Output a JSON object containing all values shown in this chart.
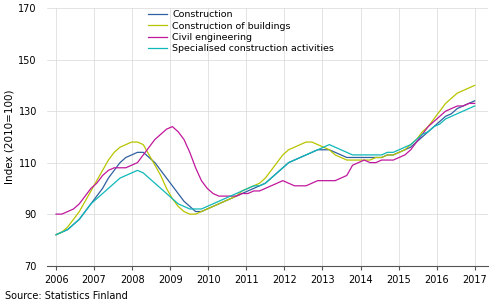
{
  "title": "",
  "ylabel": "Index (2010=100)",
  "source": "Source: Statistics Finland",
  "ylim": [
    70,
    170
  ],
  "yticks": [
    70,
    90,
    110,
    130,
    150,
    170
  ],
  "xlim": [
    2005.75,
    2017.35
  ],
  "xticks": [
    2006,
    2007,
    2008,
    2009,
    2010,
    2011,
    2012,
    2013,
    2014,
    2015,
    2016,
    2017
  ],
  "colors": {
    "construction": "#3060a0",
    "buildings": "#b8c400",
    "civil": "#c0189c",
    "specialised": "#10b8b8"
  },
  "construction": [
    82,
    83,
    84,
    86,
    88,
    91,
    94,
    97,
    100,
    104,
    107,
    110,
    112,
    113,
    114,
    114,
    112,
    110,
    107,
    104,
    101,
    98,
    95,
    93,
    91,
    91,
    92,
    93,
    94,
    95,
    96,
    97,
    98,
    99,
    100,
    101,
    102,
    104,
    106,
    108,
    110,
    111,
    112,
    113,
    114,
    115,
    115,
    115,
    114,
    113,
    112,
    112,
    112,
    112,
    112,
    112,
    112,
    113,
    113,
    114,
    115,
    116,
    118,
    120,
    122,
    124,
    126,
    128,
    129,
    131,
    132,
    133,
    134
  ],
  "buildings": [
    82,
    83,
    85,
    88,
    91,
    95,
    99,
    103,
    107,
    111,
    114,
    116,
    117,
    118,
    118,
    117,
    113,
    109,
    105,
    100,
    96,
    93,
    91,
    90,
    90,
    91,
    92,
    93,
    94,
    95,
    96,
    97,
    99,
    100,
    101,
    102,
    104,
    107,
    110,
    113,
    115,
    116,
    117,
    118,
    118,
    117,
    116,
    115,
    113,
    112,
    111,
    111,
    111,
    111,
    111,
    112,
    112,
    113,
    113,
    114,
    115,
    117,
    119,
    122,
    124,
    127,
    130,
    133,
    135,
    137,
    138,
    139,
    140
  ],
  "civil": [
    90,
    90,
    91,
    92,
    94,
    97,
    100,
    102,
    105,
    107,
    108,
    108,
    108,
    109,
    110,
    113,
    116,
    119,
    121,
    123,
    124,
    122,
    119,
    114,
    108,
    103,
    100,
    98,
    97,
    97,
    97,
    97,
    98,
    98,
    99,
    99,
    100,
    101,
    102,
    103,
    102,
    101,
    101,
    101,
    102,
    103,
    103,
    103,
    103,
    104,
    105,
    109,
    110,
    111,
    110,
    110,
    111,
    111,
    111,
    112,
    113,
    115,
    118,
    121,
    124,
    126,
    128,
    130,
    131,
    132,
    132,
    133,
    133
  ],
  "specialised": [
    82,
    83,
    84,
    86,
    88,
    91,
    94,
    96,
    98,
    100,
    102,
    104,
    105,
    106,
    107,
    106,
    104,
    102,
    100,
    98,
    96,
    94,
    93,
    92,
    92,
    92,
    93,
    94,
    95,
    96,
    97,
    98,
    99,
    100,
    101,
    101,
    102,
    104,
    106,
    108,
    110,
    111,
    112,
    113,
    114,
    115,
    116,
    117,
    116,
    115,
    114,
    113,
    113,
    113,
    113,
    113,
    113,
    114,
    114,
    115,
    116,
    117,
    119,
    121,
    122,
    124,
    125,
    127,
    128,
    129,
    130,
    131,
    132
  ],
  "n_points": 73,
  "start_year": 2006.0,
  "end_year": 2017.0
}
